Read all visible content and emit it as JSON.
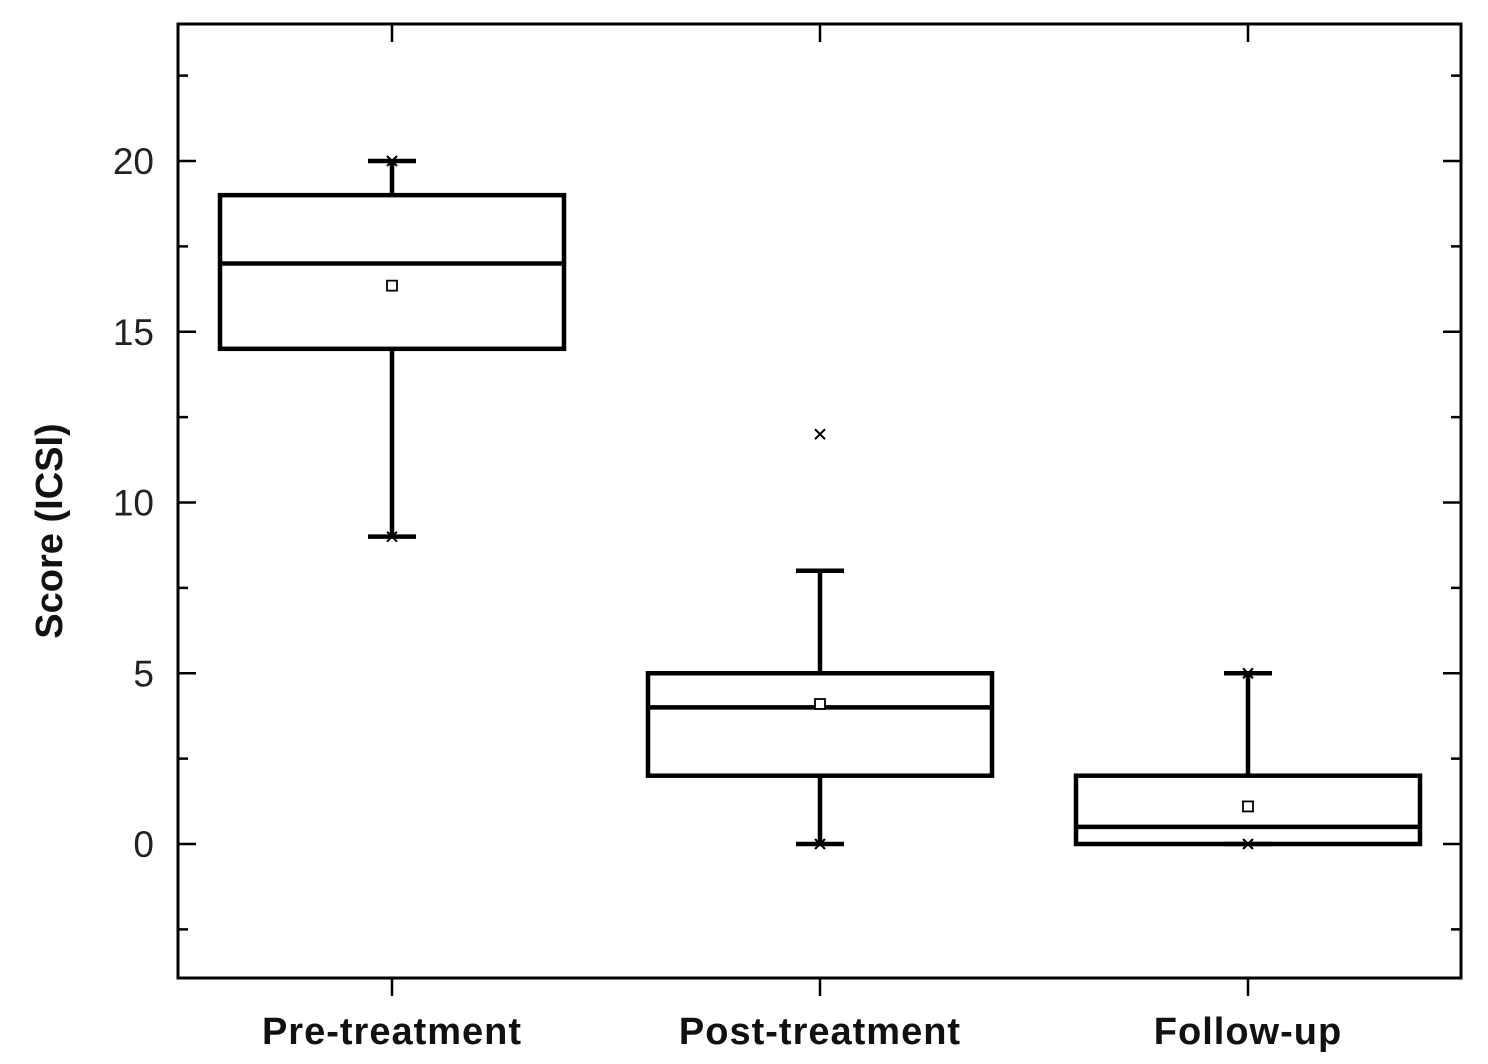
{
  "chart_data": {
    "type": "box",
    "title": "",
    "xlabel": "",
    "ylabel": "Score (ICSI)",
    "ylim": [
      -4,
      24
    ],
    "yticks": [
      0,
      5,
      10,
      15,
      20
    ],
    "yticks_minor_step": 2.5,
    "categories": [
      "Pre-treatment",
      "Post-treatment",
      "Follow-up"
    ],
    "boxes": [
      {
        "category": "Pre-treatment",
        "whisker_low": 9,
        "q1": 14.5,
        "median": 17,
        "q3": 19,
        "whisker_high": 20,
        "mean": 16.35,
        "extremes": [
          9,
          20
        ]
      },
      {
        "category": "Post-treatment",
        "whisker_low": 0,
        "q1": 2,
        "median": 4,
        "q3": 5,
        "whisker_high": 8,
        "mean": 4.1,
        "extremes": [
          0,
          12
        ]
      },
      {
        "category": "Follow-up",
        "whisker_low": 0,
        "q1": 0,
        "median": 0.5,
        "q3": 2,
        "whisker_high": 5,
        "mean": 1.1,
        "extremes": [
          0,
          5
        ]
      }
    ],
    "grid": false,
    "legend": "none"
  }
}
